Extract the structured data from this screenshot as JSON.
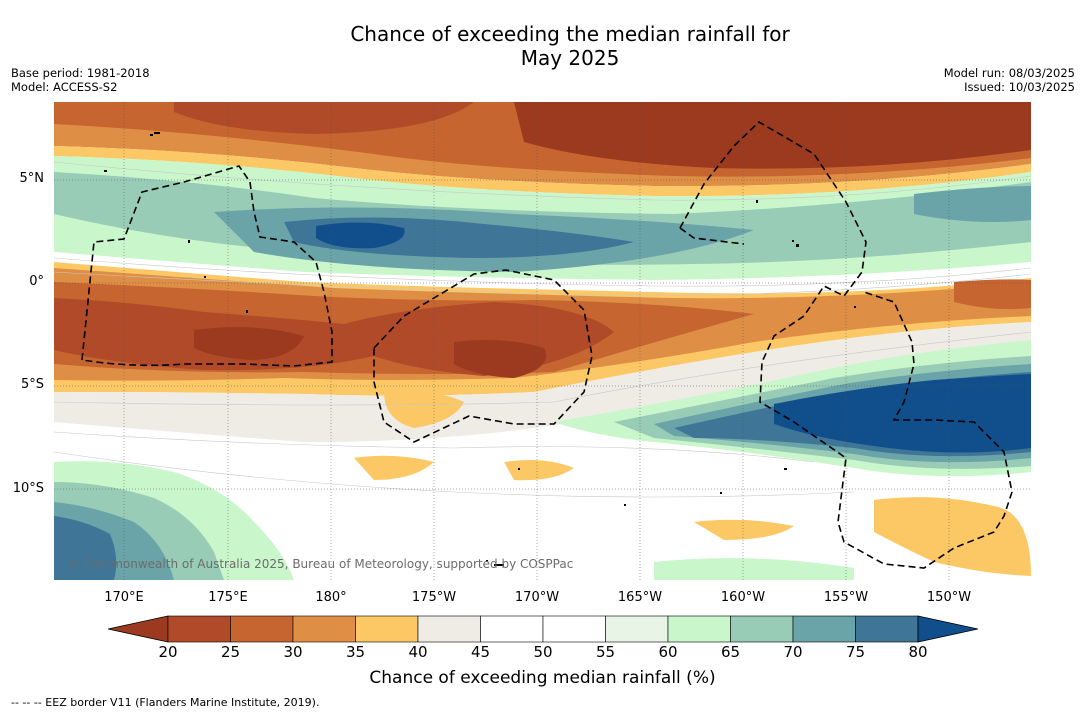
{
  "title_line1": "Chance of exceeding the median rainfall for",
  "title_line2": "May 2025",
  "base_period": "Base period: 1981-2018",
  "model": "Model: ACCESS-S2",
  "model_run": "Model run: 08/03/2025",
  "issued": "Issued: 10/03/2025",
  "lat_labels": [
    "5°N",
    "0°",
    "5°S",
    "10°S"
  ],
  "lon_labels": [
    "170°E",
    "175°E",
    "180°",
    "175°W",
    "170°W",
    "165°W",
    "160°W",
    "155°W",
    "150°W"
  ],
  "credit": "© Commonwealth of Australia 2025, Bureau of Meteorology, supported by COSPPac",
  "colorbar": {
    "ticks": [
      "20",
      "25",
      "30",
      "35",
      "40",
      "45",
      "50",
      "55",
      "60",
      "65",
      "70",
      "75",
      "80"
    ],
    "label": "Chance of exceeding median rainfall (%)",
    "colors": [
      "#9b3a1f",
      "#b04a28",
      "#c76530",
      "#de8f45",
      "#fcc865",
      "#efebe5",
      "#ffffff",
      "#ffffff",
      "#e8f4e6",
      "#c9f6cb",
      "#98ccb6",
      "#6aa4a9",
      "#3f7597",
      "#114e8c"
    ]
  },
  "footnote": "--  --  -- EEZ border V11 (Flanders Marine Institute, 2019)."
}
